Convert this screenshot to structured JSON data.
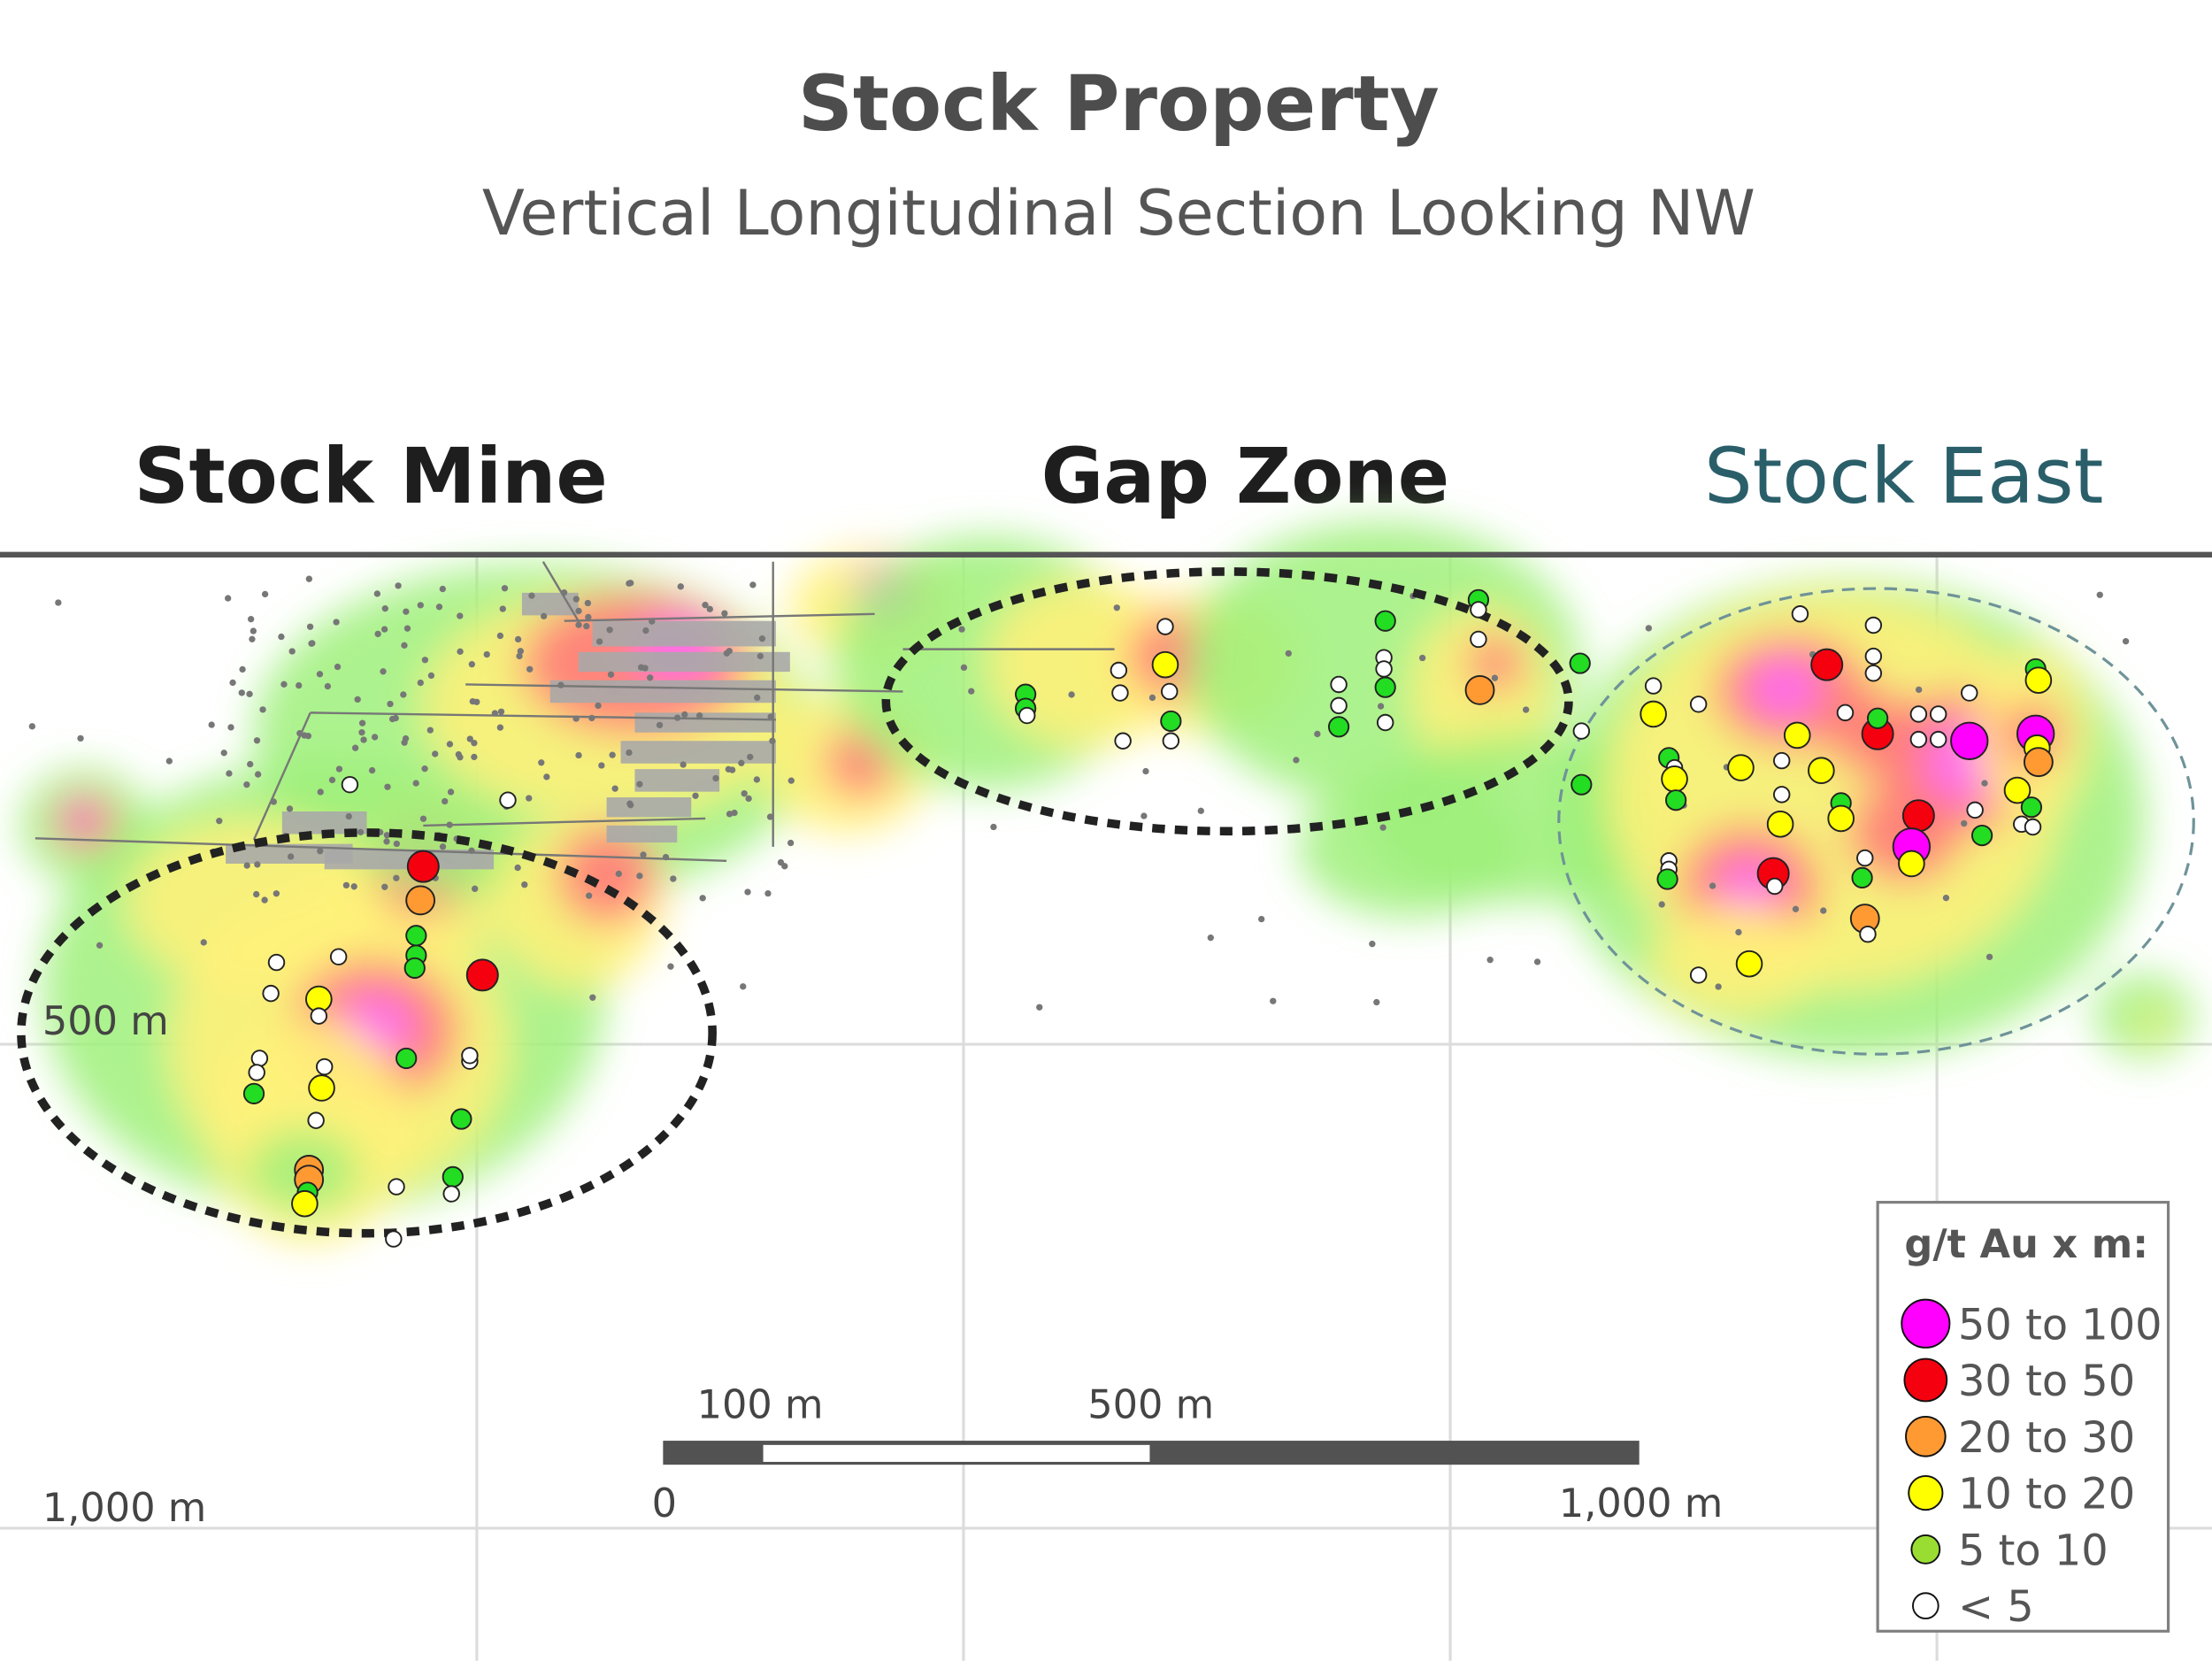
{
  "title": "Stock Property",
  "subtitle": "Vertical Longitudinal Section Looking NW",
  "zones": [
    {
      "label": "Stock Mine",
      "color": "#1e1e1e"
    },
    {
      "label": "Gap Zone",
      "color": "#1e1e1e"
    },
    {
      "label": "Stock East",
      "color": "#2a5f6a"
    }
  ],
  "depth_labels": [
    "500 m",
    "1,000 m"
  ],
  "scale_bar": {
    "labels_top": [
      "100 m",
      "500 m"
    ],
    "labels_bottom": [
      "0",
      "1,000 m"
    ]
  },
  "legend": {
    "title": "g/t Au  x m:",
    "items": [
      {
        "label": "50 to 100",
        "color": "#ff00ff"
      },
      {
        "label": "30 to 50",
        "color": "#f5000f"
      },
      {
        "label": "20 to 30",
        "color": "#ff9a33"
      },
      {
        "label": "10 to 20",
        "color": "#ffff00"
      },
      {
        "label": "5 to 10",
        "color": "#99dd33"
      },
      {
        "label": "< 5",
        "color": "#ffffff"
      }
    ]
  },
  "heatmap_colors": {
    "low": "#9ef07a",
    "mid": "#fff27a",
    "high": "#ff7a7a",
    "peak": "#ff66ff"
  },
  "intercept_colors": {
    "m": "#ff00ff",
    "r": "#f5000f",
    "o": "#ff9a33",
    "y": "#ffff00",
    "g": "#22dd22",
    "w": "#ffffff"
  }
}
